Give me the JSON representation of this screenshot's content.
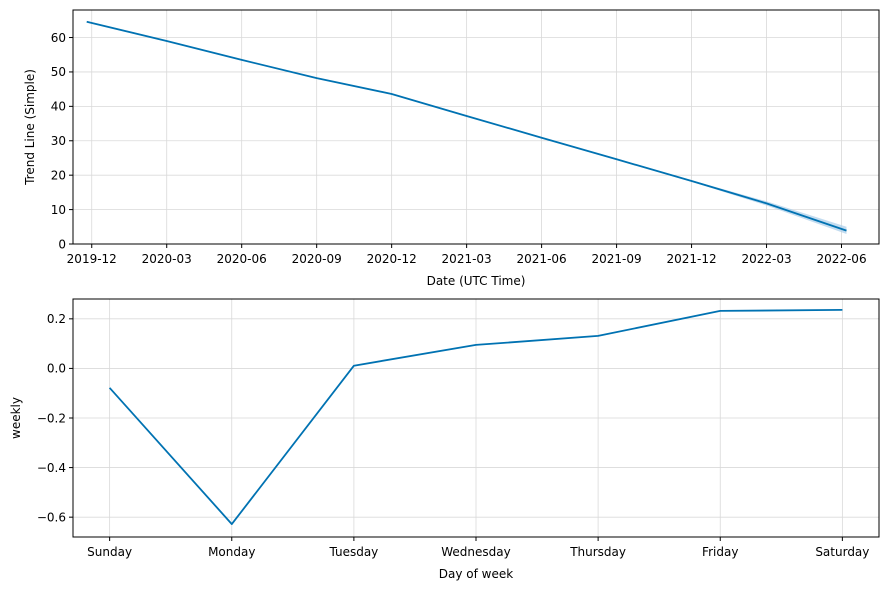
{
  "colors": {
    "line": "#0072b2",
    "band": "#aacdea"
  },
  "chart_data": [
    {
      "type": "line",
      "name": "trend",
      "xlabel": "Date (UTC Time)",
      "ylabel": "Trend Line (Simple)",
      "x_unit": "month-index (0 = 2019-12)",
      "xlim": [
        -0.75,
        31.5
      ],
      "ylim": [
        0,
        68
      ],
      "xticks": [
        0,
        3,
        6,
        9,
        12,
        15,
        18,
        21,
        24,
        27,
        30
      ],
      "xtick_labels": [
        "2019-12",
        "2020-03",
        "2020-06",
        "2020-09",
        "2020-12",
        "2021-03",
        "2021-06",
        "2021-09",
        "2021-12",
        "2022-03",
        "2022-06"
      ],
      "yticks": [
        0,
        10,
        20,
        30,
        40,
        50,
        60
      ],
      "ytick_labels": [
        "0",
        "10",
        "20",
        "30",
        "40",
        "50",
        "60"
      ],
      "grid": true,
      "x": [
        -0.2,
        3,
        6,
        9,
        12,
        15,
        18,
        21,
        24,
        27,
        30.2
      ],
      "y": [
        64.6,
        59.0,
        53.5,
        48.2,
        43.6,
        37.2,
        30.9,
        24.6,
        18.3,
        11.8,
        3.9
      ],
      "y_lower": [
        64.6,
        59.0,
        53.5,
        48.2,
        43.6,
        37.2,
        30.9,
        24.6,
        18.1,
        11.2,
        2.9
      ],
      "y_upper": [
        64.6,
        59.0,
        53.5,
        48.2,
        43.6,
        37.2,
        30.9,
        24.6,
        18.5,
        12.4,
        5.0
      ]
    },
    {
      "type": "line",
      "name": "weekly",
      "xlabel": "Day of week",
      "ylabel": "weekly",
      "xlim": [
        -0.3,
        6.3
      ],
      "ylim": [
        -0.68,
        0.28
      ],
      "categories": [
        "Sunday",
        "Monday",
        "Tuesday",
        "Wednesday",
        "Thursday",
        "Friday",
        "Saturday"
      ],
      "values": [
        -0.078,
        -0.628,
        0.011,
        0.095,
        0.131,
        0.232,
        0.236
      ],
      "yticks": [
        -0.6,
        -0.4,
        -0.2,
        0.0,
        0.2
      ],
      "ytick_labels": [
        "−0.6",
        "−0.4",
        "−0.2",
        "0.0",
        "0.2"
      ],
      "grid": true
    }
  ]
}
